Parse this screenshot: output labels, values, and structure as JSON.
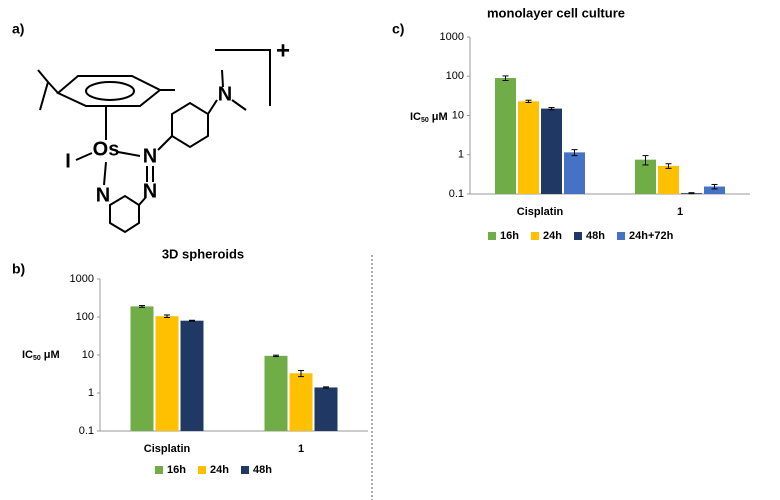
{
  "panels": [
    "a)",
    "b)",
    "c)"
  ],
  "structure": {
    "metal": "Os",
    "halide": "I",
    "nitrogens": [
      "N",
      "N",
      "N",
      "N"
    ],
    "charge": "+"
  },
  "chart_data": [
    {
      "type": "bar",
      "title": "monolayer cell culture",
      "ylabel": [
        "IC",
        "50",
        "μM"
      ],
      "log": true,
      "categories": [
        "Cisplatin",
        "1"
      ],
      "series": [
        {
          "name": "16h",
          "color": "#70ad47",
          "values": [
            90,
            0.75
          ],
          "errors": [
            12,
            0.2
          ]
        },
        {
          "name": "24h",
          "color": "#ffc000",
          "values": [
            23,
            0.52
          ],
          "errors": [
            1.5,
            0.07
          ]
        },
        {
          "name": "48h",
          "color": "#203864",
          "values": [
            15,
            0.105
          ],
          "errors": [
            1,
            0.003
          ]
        },
        {
          "name": "24h+72h",
          "color": "#4472c4",
          "values": [
            1.15,
            0.155
          ],
          "errors": [
            0.2,
            0.02
          ]
        }
      ],
      "ylim": [
        0.1,
        1000
      ],
      "yticks": [
        0.1,
        1,
        10,
        100,
        1000
      ],
      "legend": "bottom"
    },
    {
      "type": "bar",
      "title": "3D spheroids",
      "ylabel": [
        "IC",
        "50",
        "μM"
      ],
      "log": true,
      "categories": [
        "Cisplatin",
        "1"
      ],
      "series": [
        {
          "name": "16h",
          "color": "#70ad47",
          "values": [
            190,
            9.5
          ],
          "errors": [
            10,
            0.4
          ]
        },
        {
          "name": "24h",
          "color": "#ffc000",
          "values": [
            105,
            3.3
          ],
          "errors": [
            8,
            0.6
          ]
        },
        {
          "name": "48h",
          "color": "#203864",
          "values": [
            80,
            1.4
          ],
          "errors": [
            2,
            0.05
          ]
        }
      ],
      "ylim": [
        0.1,
        1000
      ],
      "yticks": [
        0.1,
        1,
        10,
        100,
        1000
      ],
      "legend": "bottom"
    }
  ]
}
